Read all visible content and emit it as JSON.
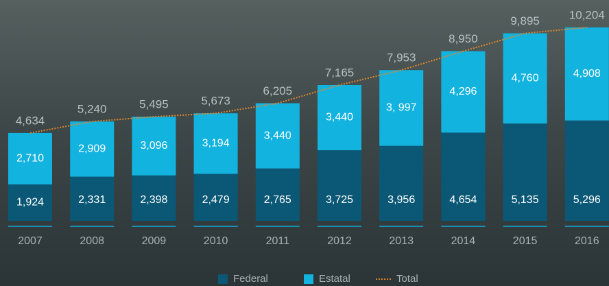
{
  "chart_data": {
    "type": "bar",
    "stacked": true,
    "categories": [
      "2007",
      "2008",
      "2009",
      "2010",
      "2011",
      "2012",
      "2013",
      "2014",
      "2015",
      "2016"
    ],
    "series": [
      {
        "name": "Federal",
        "color": "#0b5876",
        "values": [
          1924,
          2331,
          2398,
          2479,
          2765,
          3725,
          3956,
          4654,
          5135,
          5296
        ],
        "value_labels": [
          "1,924",
          "2,331",
          "2,398",
          "2,479",
          "2,765",
          "3,725",
          "3,956",
          "4,654",
          "5,135",
          "5,296"
        ]
      },
      {
        "name": "Estatal",
        "color": "#13b3df",
        "values": [
          2710,
          2909,
          3096,
          3194,
          3440,
          3440,
          3997,
          4296,
          4760,
          4908
        ],
        "value_labels": [
          "2,710",
          "2,909",
          "3,096",
          "3,194",
          "3,440",
          "3,440",
          "3, 997",
          "4,296",
          "4,760",
          "4,908"
        ]
      },
      {
        "name": "Total",
        "type": "line",
        "color": "#e0872a",
        "values": [
          4634,
          5240,
          5495,
          5673,
          6205,
          7165,
          7953,
          8950,
          9895,
          10204
        ],
        "value_labels": [
          "4,634",
          "5,240",
          "5,495",
          "5,673",
          "6,205",
          "7,165",
          "7,953",
          "8,950",
          "9,895",
          "10,204"
        ]
      }
    ],
    "legend": "bottom"
  }
}
